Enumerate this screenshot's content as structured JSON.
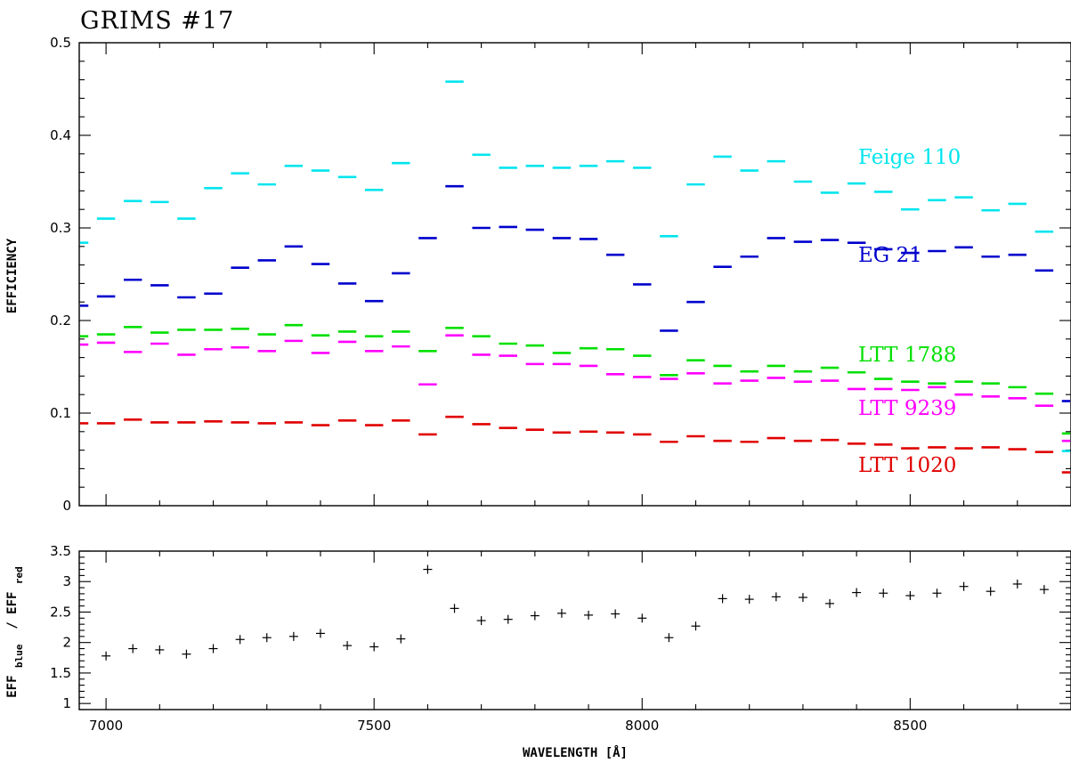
{
  "title": "GRIMS #17",
  "chart_data": [
    {
      "type": "scatter",
      "xlabel": "WAVELENGTH [Å]",
      "ylabel": "EFFICIENCY",
      "xlim": [
        6950,
        8800
      ],
      "ylim": [
        0,
        0.5
      ],
      "x_ticks": [
        7000,
        7500,
        8000,
        8500
      ],
      "y_ticks": [
        0,
        0.1,
        0.2,
        0.3,
        0.4,
        0.5
      ],
      "y_tick_labels": [
        "0",
        "0.1",
        "0.2",
        "0.3",
        "0.4",
        "0.5"
      ],
      "x": [
        6950,
        7000,
        7050,
        7100,
        7150,
        7200,
        7250,
        7300,
        7350,
        7400,
        7450,
        7500,
        7550,
        7600,
        7650,
        7700,
        7750,
        7800,
        7850,
        7900,
        7950,
        8000,
        8050,
        8100,
        8150,
        8200,
        8250,
        8300,
        8350,
        8400,
        8450,
        8500,
        8550,
        8600,
        8650,
        8700,
        8750,
        8800
      ],
      "series": [
        {
          "name": "Feige 110",
          "color": "#00e5ee",
          "values": [
            0.284,
            0.31,
            0.329,
            0.328,
            0.31,
            0.343,
            0.359,
            0.347,
            0.367,
            0.362,
            0.355,
            0.341,
            0.37,
            null,
            0.458,
            0.379,
            0.365,
            0.367,
            0.365,
            0.367,
            0.372,
            0.365,
            0.291,
            0.347,
            0.377,
            0.362,
            0.372,
            0.35,
            0.338,
            0.348,
            0.339,
            0.32,
            0.33,
            0.333,
            0.319,
            0.326,
            0.296,
            0.059
          ]
        },
        {
          "name": "EG 21",
          "color": "#0000cd",
          "values": [
            0.216,
            0.226,
            0.244,
            0.238,
            0.225,
            0.229,
            0.257,
            0.265,
            0.28,
            0.261,
            0.24,
            0.221,
            0.251,
            0.289,
            0.345,
            0.3,
            0.301,
            0.298,
            0.289,
            0.288,
            0.271,
            0.239,
            0.189,
            0.22,
            0.258,
            0.269,
            0.289,
            0.285,
            0.287,
            0.284,
            0.277,
            0.273,
            0.275,
            0.279,
            0.269,
            0.271,
            0.254,
            0.113
          ]
        },
        {
          "name": "LTT 1788",
          "color": "#00e000",
          "values": [
            0.183,
            0.185,
            0.193,
            0.187,
            0.19,
            0.19,
            0.191,
            0.185,
            0.195,
            0.184,
            0.188,
            0.183,
            0.188,
            0.167,
            0.192,
            0.183,
            0.175,
            0.173,
            0.165,
            0.17,
            0.169,
            0.162,
            0.141,
            0.157,
            0.151,
            0.145,
            0.151,
            0.145,
            0.149,
            0.144,
            0.137,
            0.134,
            0.132,
            0.134,
            0.132,
            0.128,
            0.121,
            0.078
          ]
        },
        {
          "name": "LTT 9239",
          "color": "#ff00ff",
          "values": [
            0.174,
            0.176,
            0.166,
            0.175,
            0.163,
            0.169,
            0.171,
            0.167,
            0.178,
            0.165,
            0.177,
            0.167,
            0.172,
            0.131,
            0.184,
            0.163,
            0.162,
            0.153,
            0.153,
            0.151,
            0.142,
            0.139,
            0.137,
            0.143,
            0.132,
            0.135,
            0.138,
            0.134,
            0.135,
            0.126,
            0.126,
            0.125,
            0.128,
            0.12,
            0.118,
            0.116,
            0.108,
            0.07
          ]
        },
        {
          "name": "LTT 1020",
          "color": "#e00000",
          "values": [
            0.089,
            0.089,
            0.093,
            0.09,
            0.09,
            0.091,
            0.09,
            0.089,
            0.09,
            0.087,
            0.092,
            0.087,
            0.092,
            0.077,
            0.096,
            0.088,
            0.084,
            0.082,
            0.079,
            0.08,
            0.079,
            0.077,
            0.069,
            0.075,
            0.07,
            0.069,
            0.073,
            0.07,
            0.071,
            0.067,
            0.066,
            0.062,
            0.063,
            0.062,
            0.063,
            0.061,
            0.058,
            0.036
          ]
        }
      ]
    },
    {
      "type": "scatter",
      "xlabel": "WAVELENGTH [Å]",
      "ylabel_parts": [
        "EFF",
        "blue",
        " / EFF",
        "red"
      ],
      "xlim": [
        6950,
        8800
      ],
      "ylim": [
        0.9,
        3.5
      ],
      "x_ticks": [
        7000,
        7500,
        8000,
        8500
      ],
      "y_ticks": [
        1,
        1.5,
        2,
        2.5,
        3,
        3.5
      ],
      "y_tick_labels": [
        "1",
        "1.5",
        "2",
        "2.5",
        "3",
        "3.5"
      ],
      "x": [
        7000,
        7050,
        7100,
        7150,
        7200,
        7250,
        7300,
        7350,
        7400,
        7450,
        7500,
        7550,
        7600,
        7650,
        7700,
        7750,
        7800,
        7850,
        7900,
        7950,
        8000,
        8050,
        8100,
        8150,
        8200,
        8250,
        8300,
        8350,
        8400,
        8450,
        8500,
        8550,
        8600,
        8650,
        8700,
        8750
      ],
      "values": [
        1.78,
        1.9,
        1.88,
        1.81,
        1.9,
        2.05,
        2.08,
        2.1,
        2.15,
        1.95,
        1.93,
        2.06,
        3.2,
        2.56,
        2.36,
        2.38,
        2.44,
        2.48,
        2.45,
        2.47,
        2.4,
        2.08,
        2.27,
        2.72,
        2.71,
        2.75,
        2.74,
        2.64,
        2.82,
        2.81,
        2.77,
        2.81,
        2.92,
        2.84,
        2.96,
        2.87
      ]
    }
  ]
}
